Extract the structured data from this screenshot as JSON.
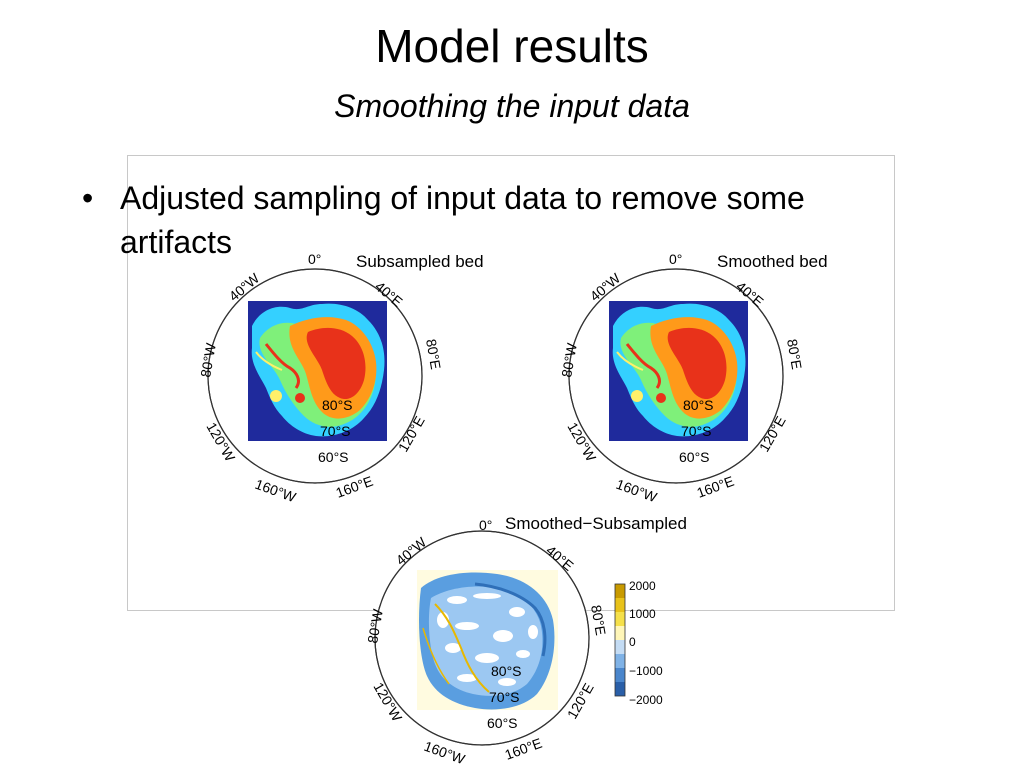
{
  "slide": {
    "title": "Model results",
    "subtitle": "Smoothing the input data",
    "bullets": [
      "Adjusted sampling of input data to remove some artifacts"
    ]
  },
  "figure": {
    "panels": [
      {
        "title": "Subsampled bed",
        "lon_labels": [
          "0°",
          "40°E",
          "80°E",
          "120°E",
          "160°E",
          "160°W",
          "120°W",
          "80°W",
          "40°W"
        ],
        "lat_labels": [
          "80°S",
          "70°S",
          "60°S"
        ]
      },
      {
        "title": "Smoothed bed",
        "lon_labels": [
          "0°",
          "40°E",
          "80°E",
          "120°E",
          "160°E",
          "160°W",
          "120°W",
          "80°W",
          "40°W"
        ],
        "lat_labels": [
          "80°S",
          "70°S",
          "60°S"
        ]
      },
      {
        "title": "Smoothed−Subsampled",
        "lon_labels": [
          "0°",
          "40°E",
          "80°E",
          "120°E",
          "160°E",
          "160°W",
          "120°W",
          "80°W",
          "40°W"
        ],
        "lat_labels": [
          "80°S",
          "70°S",
          "60°S"
        ]
      }
    ],
    "colorbar": {
      "ticks": [
        "2000",
        "1000",
        "0",
        "−1000",
        "−2000"
      ],
      "values": [
        2000,
        1000,
        0,
        -1000,
        -2000
      ]
    }
  }
}
